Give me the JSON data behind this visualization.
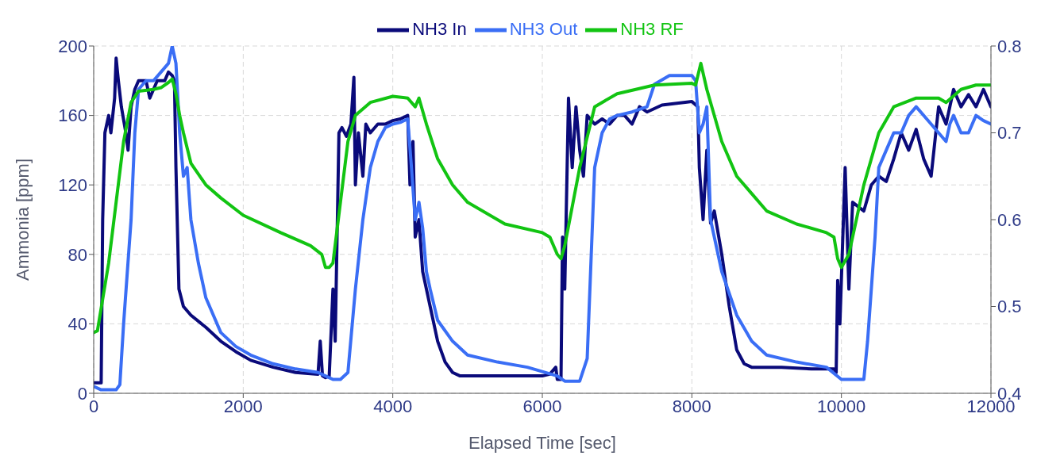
{
  "chart_data": {
    "type": "line",
    "xlabel": "Elapsed Time [sec]",
    "ylabel": "Ammonia [ppm]",
    "xlim": [
      0,
      12000
    ],
    "xticks": [
      0,
      2000,
      4000,
      6000,
      8000,
      10000,
      12000
    ],
    "ylim": [
      0,
      200
    ],
    "yticks": [
      0,
      40,
      80,
      120,
      160,
      200
    ],
    "y2lim": [
      0.4,
      0.8
    ],
    "y2ticks": [
      0.4,
      0.5,
      0.6,
      0.7,
      0.8
    ],
    "grid": true,
    "legend": "top",
    "line_style": "solid",
    "marker": "none",
    "series": [
      {
        "name": "NH3 In",
        "color": "#0a0a7a",
        "x": [
          0,
          100,
          120,
          150,
          200,
          230,
          280,
          300,
          330,
          370,
          430,
          460,
          500,
          550,
          600,
          700,
          750,
          850,
          950,
          1000,
          1050,
          1080,
          1100,
          1140,
          1200,
          1300,
          1500,
          1700,
          1900,
          2100,
          2400,
          2700,
          3000,
          3030,
          3060,
          3100,
          3150,
          3200,
          3230,
          3280,
          3320,
          3380,
          3440,
          3480,
          3500,
          3540,
          3600,
          3640,
          3700,
          3800,
          3900,
          4000,
          4100,
          4200,
          4230,
          4270,
          4300,
          4350,
          4400,
          4500,
          4600,
          4700,
          4800,
          4900,
          5200,
          5600,
          6000,
          6100,
          6180,
          6200,
          6250,
          6270,
          6300,
          6350,
          6400,
          6450,
          6500,
          6550,
          6600,
          6700,
          6800,
          6900,
          7000,
          7100,
          7200,
          7300,
          7400,
          7600,
          7800,
          8000,
          8080,
          8100,
          8150,
          8200,
          8250,
          8300,
          8400,
          8500,
          8600,
          8700,
          8800,
          9200,
          9600,
          9900,
          9930,
          9950,
          9980,
          10050,
          10100,
          10150,
          10300,
          10400,
          10500,
          10600,
          10700,
          10800,
          10900,
          11000,
          11100,
          11200,
          11300,
          11400,
          11500,
          11600,
          11700,
          11800,
          11900,
          12000
        ],
        "values": [
          6,
          6,
          100,
          150,
          160,
          150,
          170,
          193,
          180,
          165,
          150,
          140,
          165,
          175,
          180,
          180,
          170,
          180,
          180,
          185,
          183,
          180,
          130,
          60,
          50,
          45,
          38,
          30,
          24,
          19,
          15,
          12,
          11,
          30,
          10,
          9,
          10,
          60,
          30,
          150,
          153,
          148,
          155,
          182,
          120,
          150,
          125,
          155,
          150,
          155,
          155,
          157,
          158,
          160,
          120,
          145,
          90,
          100,
          70,
          50,
          30,
          18,
          12,
          10,
          10,
          10,
          10,
          11,
          15,
          8,
          8,
          90,
          60,
          170,
          130,
          165,
          140,
          125,
          160,
          155,
          158,
          155,
          160,
          160,
          155,
          165,
          162,
          166,
          167,
          168,
          165,
          130,
          100,
          140,
          98,
          105,
          80,
          50,
          25,
          17,
          15,
          15,
          14,
          14,
          12,
          65,
          40,
          130,
          60,
          110,
          105,
          120,
          125,
          122,
          135,
          150,
          140,
          152,
          135,
          125,
          165,
          155,
          175,
          165,
          172,
          165,
          175,
          165
        ]
      },
      {
        "name": "NH3 Out",
        "color": "#3a6ef5",
        "x": [
          0,
          100,
          300,
          350,
          400,
          500,
          550,
          600,
          700,
          800,
          900,
          1000,
          1050,
          1100,
          1150,
          1200,
          1250,
          1300,
          1400,
          1500,
          1700,
          1900,
          2100,
          2400,
          2700,
          3000,
          3100,
          3200,
          3300,
          3400,
          3500,
          3600,
          3700,
          3800,
          3900,
          4000,
          4100,
          4200,
          4250,
          4300,
          4350,
          4400,
          4450,
          4500,
          4600,
          4800,
          5000,
          5400,
          5800,
          6200,
          6300,
          6500,
          6600,
          6700,
          6800,
          6900,
          7000,
          7200,
          7400,
          7500,
          7700,
          7900,
          8000,
          8050,
          8100,
          8150,
          8200,
          8250,
          8400,
          8600,
          8800,
          9000,
          9400,
          9800,
          10000,
          10300,
          10350,
          10450,
          10500,
          10600,
          10700,
          10800,
          10900,
          11000,
          11200,
          11400,
          11450,
          11500,
          11600,
          11700,
          11800,
          11900,
          12000
        ],
        "values": [
          4,
          2,
          2,
          5,
          40,
          100,
          150,
          175,
          180,
          180,
          185,
          190,
          200,
          190,
          150,
          125,
          130,
          100,
          75,
          55,
          35,
          27,
          22,
          17,
          14,
          12,
          10,
          8,
          8,
          12,
          60,
          100,
          130,
          145,
          153,
          155,
          156,
          158,
          130,
          100,
          110,
          95,
          70,
          60,
          42,
          30,
          22,
          18,
          15,
          10,
          7,
          7,
          20,
          130,
          150,
          158,
          160,
          162,
          165,
          178,
          183,
          183,
          183,
          180,
          150,
          155,
          165,
          100,
          70,
          45,
          30,
          22,
          18,
          15,
          8,
          8,
          30,
          90,
          130,
          140,
          150,
          150,
          160,
          165,
          155,
          145,
          155,
          160,
          150,
          150,
          160,
          157,
          155
        ]
      },
      {
        "name": "NH3 RF",
        "color": "#12c412",
        "axis": "y2",
        "x": [
          0,
          50,
          200,
          300,
          400,
          500,
          600,
          800,
          900,
          1000,
          1050,
          1100,
          1150,
          1200,
          1300,
          1500,
          1700,
          2000,
          2500,
          2900,
          3050,
          3100,
          3150,
          3200,
          3300,
          3400,
          3500,
          3700,
          4000,
          4200,
          4300,
          4350,
          4450,
          4600,
          4800,
          5000,
          5500,
          6000,
          6100,
          6200,
          6250,
          6300,
          6500,
          6700,
          7000,
          7500,
          8000,
          8050,
          8120,
          8200,
          8400,
          8600,
          8800,
          9000,
          9400,
          9800,
          9900,
          9950,
          10000,
          10100,
          10300,
          10500,
          10700,
          11000,
          11300,
          11400,
          11600,
          11800,
          12000
        ],
        "values": [
          0.47,
          0.472,
          0.55,
          0.62,
          0.69,
          0.735,
          0.748,
          0.75,
          0.752,
          0.758,
          0.762,
          0.745,
          0.72,
          0.7,
          0.665,
          0.64,
          0.625,
          0.605,
          0.585,
          0.57,
          0.56,
          0.545,
          0.545,
          0.55,
          0.62,
          0.69,
          0.72,
          0.735,
          0.742,
          0.74,
          0.73,
          0.74,
          0.71,
          0.67,
          0.64,
          0.62,
          0.595,
          0.585,
          0.58,
          0.56,
          0.555,
          0.57,
          0.66,
          0.73,
          0.745,
          0.755,
          0.757,
          0.755,
          0.78,
          0.75,
          0.69,
          0.65,
          0.63,
          0.61,
          0.595,
          0.585,
          0.58,
          0.555,
          0.545,
          0.56,
          0.64,
          0.7,
          0.73,
          0.74,
          0.74,
          0.735,
          0.75,
          0.755,
          0.755
        ]
      }
    ]
  }
}
